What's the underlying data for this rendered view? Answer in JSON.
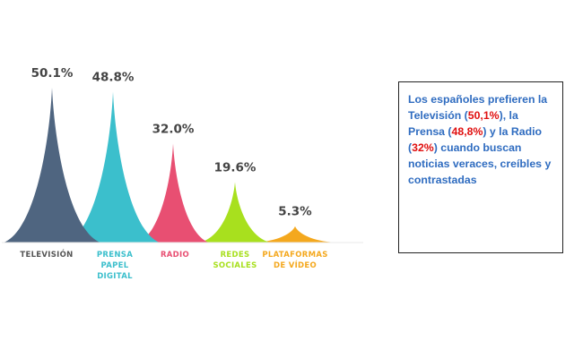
{
  "chart_data": {
    "type": "area",
    "title": "",
    "xlabel": "",
    "ylabel": "",
    "ylim": [
      0,
      55
    ],
    "grid": false,
    "legend": "none",
    "categories": [
      "TELEVISIÓN",
      "PRENSA PAPEL DIGITAL",
      "RADIO",
      "REDES SOCIALES",
      "PLATAFORMAS DE VÍDEO"
    ],
    "category_lines": [
      [
        "TELEVISIÓN"
      ],
      [
        "PRENSA",
        "PAPEL",
        "DIGITAL"
      ],
      [
        "RADIO"
      ],
      [
        "REDES",
        "SOCIALES"
      ],
      [
        "PLATAFORMAS",
        "DE VÍDEO"
      ]
    ],
    "values": [
      50.1,
      48.8,
      32.0,
      19.6,
      5.3
    ],
    "value_labels": [
      "50.1%",
      "48.8%",
      "32.0%",
      "19.6%",
      "5.3%"
    ],
    "colors": [
      "#4f6580",
      "#3bbfcc",
      "#e84f72",
      "#a8e01e",
      "#f4a81e"
    ],
    "label_colors": [
      "#555555",
      "#3bbfcc",
      "#e84f72",
      "#a8e01e",
      "#f4a81e"
    ]
  },
  "note": {
    "parts": [
      {
        "text": "Los españoles prefieren la Televisión (",
        "hl": false
      },
      {
        "text": "50,1%",
        "hl": true
      },
      {
        "text": "), la Prensa (",
        "hl": false
      },
      {
        "text": "48,8%",
        "hl": true
      },
      {
        "text": ") y la Radio (",
        "hl": false
      },
      {
        "text": "32%",
        "hl": true
      },
      {
        "text": ") cuando buscan noticias veraces, creíbles y contrastadas",
        "hl": false
      }
    ]
  }
}
